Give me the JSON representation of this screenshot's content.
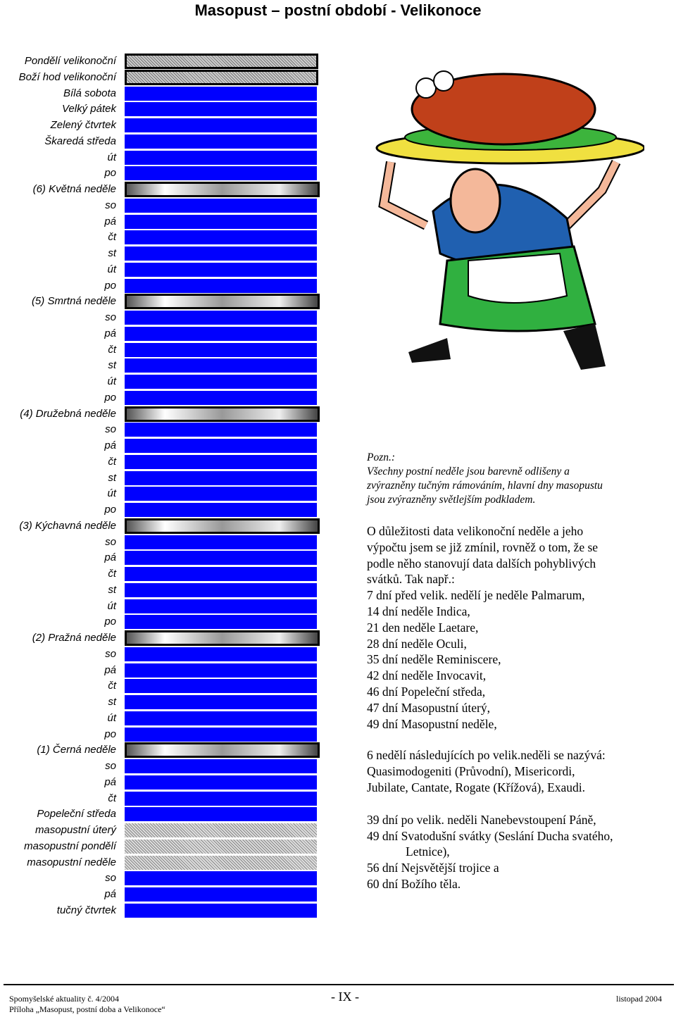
{
  "header": {
    "title": "Masopust – postní období - Velikonoce"
  },
  "calendar": {
    "rows": [
      {
        "label": "Pondělí velikonoční",
        "style": "feast"
      },
      {
        "label": "Boží hod velikonoční",
        "style": "feast"
      },
      {
        "label": "Bílá sobota",
        "style": "blue"
      },
      {
        "label": "Velký pátek",
        "style": "blue"
      },
      {
        "label": "Zelený čtvrtek",
        "style": "blue"
      },
      {
        "label": "Škaredá středa",
        "style": "blue"
      },
      {
        "label": "út",
        "style": "blue"
      },
      {
        "label": "po",
        "style": "blue"
      },
      {
        "label": "(6) Květná neděle",
        "style": "sunday"
      },
      {
        "label": "so",
        "style": "blue"
      },
      {
        "label": "pá",
        "style": "blue"
      },
      {
        "label": "čt",
        "style": "blue"
      },
      {
        "label": "st",
        "style": "blue"
      },
      {
        "label": "út",
        "style": "blue"
      },
      {
        "label": "po",
        "style": "blue"
      },
      {
        "label": "(5) Smrtná neděle",
        "style": "sunday"
      },
      {
        "label": "so",
        "style": "blue"
      },
      {
        "label": "pá",
        "style": "blue"
      },
      {
        "label": "čt",
        "style": "blue"
      },
      {
        "label": "st",
        "style": "blue"
      },
      {
        "label": "út",
        "style": "blue"
      },
      {
        "label": "po",
        "style": "blue"
      },
      {
        "label": "(4) Družebná neděle",
        "style": "sunday"
      },
      {
        "label": "so",
        "style": "blue"
      },
      {
        "label": "pá",
        "style": "blue"
      },
      {
        "label": "čt",
        "style": "blue"
      },
      {
        "label": "st",
        "style": "blue"
      },
      {
        "label": "út",
        "style": "blue"
      },
      {
        "label": "po",
        "style": "blue"
      },
      {
        "label": "(3) Kýchavná neděle",
        "style": "sunday"
      },
      {
        "label": "so",
        "style": "blue"
      },
      {
        "label": "pá",
        "style": "blue"
      },
      {
        "label": "čt",
        "style": "blue"
      },
      {
        "label": "st",
        "style": "blue"
      },
      {
        "label": "út",
        "style": "blue"
      },
      {
        "label": "po",
        "style": "blue"
      },
      {
        "label": "(2) Pražná neděle",
        "style": "sunday"
      },
      {
        "label": "so",
        "style": "blue"
      },
      {
        "label": "pá",
        "style": "blue"
      },
      {
        "label": "čt",
        "style": "blue"
      },
      {
        "label": "st",
        "style": "blue"
      },
      {
        "label": "út",
        "style": "blue"
      },
      {
        "label": "po",
        "style": "blue"
      },
      {
        "label": "(1) Černá neděle",
        "style": "sunday"
      },
      {
        "label": "so",
        "style": "blue"
      },
      {
        "label": "pá",
        "style": "blue"
      },
      {
        "label": "čt",
        "style": "blue"
      },
      {
        "label": "Popeleční středa",
        "style": "blue"
      },
      {
        "label": "masopustní úterý",
        "style": "gray"
      },
      {
        "label": "masopustní pondělí",
        "style": "gray"
      },
      {
        "label": "masopustní neděle",
        "style": "gray"
      },
      {
        "label": "so",
        "style": "blue"
      },
      {
        "label": "pá",
        "style": "blue"
      },
      {
        "label": "tučný čtvrtek",
        "style": "blue"
      }
    ]
  },
  "note": {
    "heading": "Pozn.:",
    "lines": [
      "Všechny postní neděle jsou barevně odlišeny a",
      "zvýrazněny tučným rámováním, hlavní dny masopustu",
      "jsou zvýrazněny světlejším podkladem."
    ]
  },
  "text": {
    "paragraphs": [
      [
        "O důležitosti data velikonoční neděle a jeho",
        "výpočtu jsem se již zmínil, rovněž o tom, že se",
        "podle něho stanovují data dalších pohyblivých",
        "svátků. Tak např.:",
        "7 dní před velik. nedělí je neděle Palmarum,",
        "14 dní neděle Indica,",
        "21 den neděle Laetare,",
        "28 dní neděle Oculi,",
        "35 dní neděle Reminiscere,",
        "42 dní neděle Invocavit,",
        "46 dní Popeleční středa,",
        "47 dní Masopustní úterý,",
        "49 dní Masopustní neděle,"
      ],
      [
        "6 nedělí následujících po velik.neděli se nazývá:",
        "Quasimodogeniti (Průvodní), Misericordi,",
        "Jubilate, Cantate, Rogate (Křížová), Exaudi."
      ],
      [
        "39 dní po velik. neděli Nanebevstoupení Páně,",
        "49 dní Svatodušní svátky (Seslání Ducha svatého,",
        "Letnice),",
        "56 dní Nejsvětější trojice a",
        "60 dní Božího těla."
      ]
    ]
  },
  "footer": {
    "left": "Spomyšelské aktuality č. 4/2004",
    "center": "- IX -",
    "right": "listopad 2004",
    "sub": "Příloha „Masopust, postní doba a Velikonoce“"
  }
}
